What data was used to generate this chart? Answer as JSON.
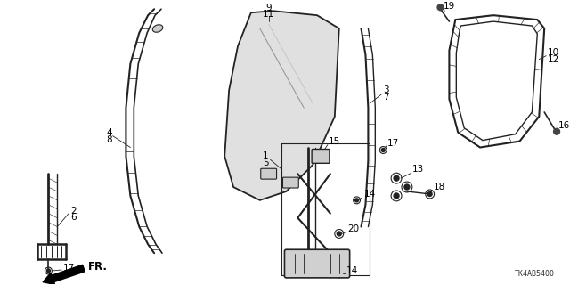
{
  "background_color": "#ffffff",
  "line_color": "#222222",
  "watermark": "TK4AB5400",
  "arrow_label": "FR.",
  "figsize": [
    6.4,
    3.2
  ],
  "dpi": 100
}
